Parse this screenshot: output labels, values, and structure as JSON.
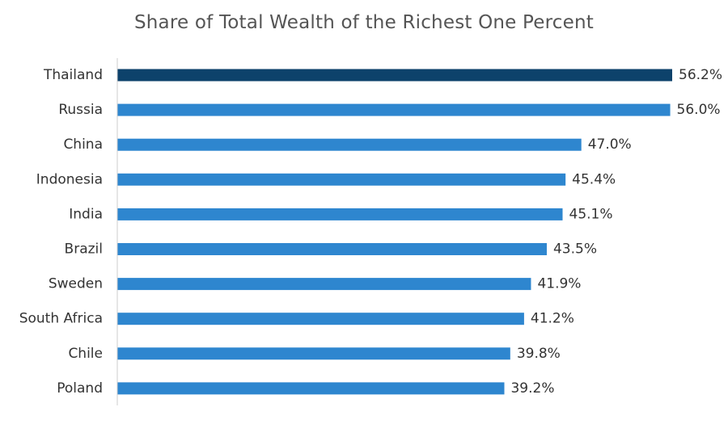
{
  "chart_data": {
    "type": "bar",
    "orientation": "horizontal",
    "title": "Share of Total Wealth of the Richest One Percent",
    "categories": [
      "Thailand",
      "Russia",
      "China",
      "Indonesia",
      "India",
      "Brazil",
      "Sweden",
      "South Africa",
      "Chile",
      "Poland"
    ],
    "values": [
      56.2,
      56.0,
      47.0,
      45.4,
      45.1,
      43.5,
      41.9,
      41.2,
      39.8,
      39.2
    ],
    "value_labels": [
      "56.2%",
      "56.0%",
      "47.0%",
      "45.4%",
      "45.1%",
      "43.5%",
      "41.9%",
      "41.2%",
      "39.8%",
      "39.2%"
    ],
    "xlim": [
      0,
      56.2
    ],
    "grid": false,
    "legend": "none",
    "colors": {
      "highlight": "#0d426b",
      "default": "#2e86cf",
      "axis": "#cccccc"
    },
    "highlight_index": 0
  }
}
